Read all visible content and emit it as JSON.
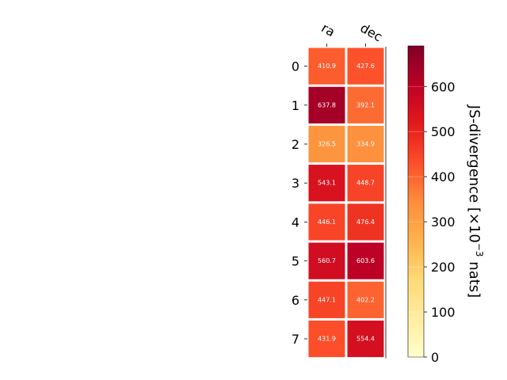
{
  "chart_data": {
    "type": "heatmap",
    "columns": [
      "ra",
      "dec"
    ],
    "rows": [
      "0",
      "1",
      "2",
      "3",
      "4",
      "5",
      "6",
      "7"
    ],
    "values": [
      [
        410.9,
        427.6
      ],
      [
        637.8,
        392.1
      ],
      [
        326.5,
        334.9
      ],
      [
        543.1,
        448.7
      ],
      [
        446.1,
        476.4
      ],
      [
        560.7,
        603.6
      ],
      [
        447.1,
        402.2
      ],
      [
        431.9,
        554.4
      ]
    ],
    "value_labels": [
      [
        "410.9",
        "427.6"
      ],
      [
        "637.8",
        "392.1"
      ],
      [
        "326.5",
        "334.9"
      ],
      [
        "543.1",
        "448.7"
      ],
      [
        "446.1",
        "476.4"
      ],
      [
        "560.7",
        "603.6"
      ],
      [
        "447.1",
        "402.2"
      ],
      [
        "431.9",
        "554.4"
      ]
    ],
    "colorbar": {
      "label_prefix": "JS-divergence [×10",
      "label_exponent": "−3",
      "label_suffix": " nats]",
      "ticks": [
        "0",
        "100",
        "200",
        "300",
        "400",
        "500",
        "600"
      ],
      "tick_values": [
        0,
        100,
        200,
        300,
        400,
        500,
        600
      ],
      "range": [
        0,
        690
      ],
      "colormap": "YlOrRd",
      "colormap_stops": [
        "#ffffcc",
        "#ffeda0",
        "#fed976",
        "#feb24c",
        "#fd8d3c",
        "#fc4e2a",
        "#e31a1c",
        "#bd0026",
        "#800026"
      ]
    }
  }
}
